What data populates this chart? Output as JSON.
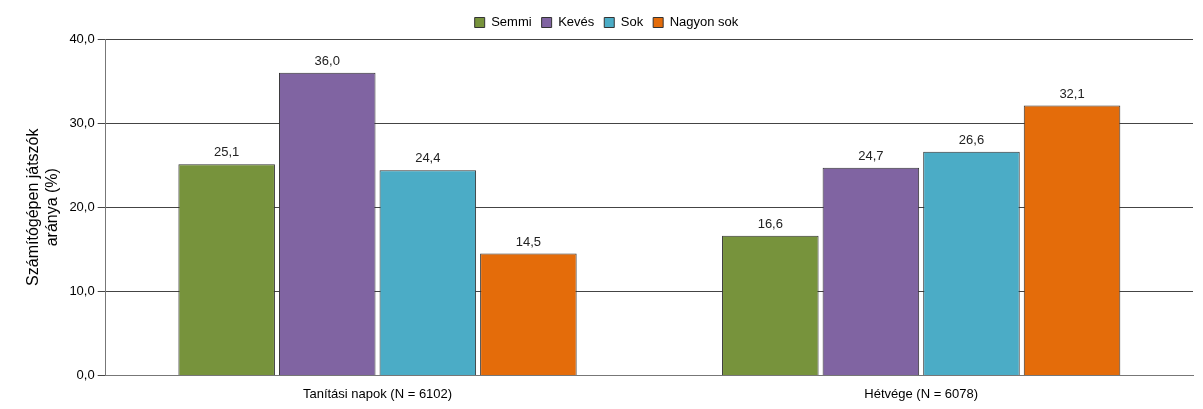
{
  "chart_data": {
    "type": "bar",
    "ylabel": "Számítógépen játszók aránya (%)",
    "categories": [
      "Tanítási napok (N = 6102)",
      "Hétvége (N = 6078)"
    ],
    "series": [
      {
        "name": "Semmi",
        "color": "#77933c",
        "values": [
          25.1,
          16.6
        ],
        "value_labels": [
          "25,1",
          "16,6"
        ]
      },
      {
        "name": "Kevés",
        "color": "#8064a2",
        "values": [
          36.0,
          24.7
        ],
        "value_labels": [
          "36,0",
          "24,7"
        ]
      },
      {
        "name": "Sok",
        "color": "#4bacc6",
        "values": [
          24.4,
          26.6
        ],
        "value_labels": [
          "24,4",
          "26,6"
        ]
      },
      {
        "name": "Nagyon sok",
        "color": "#e46c0a",
        "values": [
          14.5,
          32.1
        ],
        "value_labels": [
          "14,5",
          "32,1"
        ]
      }
    ],
    "ylim": [
      0,
      40
    ],
    "yticks": [
      {
        "value": 0,
        "label": "0,0"
      },
      {
        "value": 10,
        "label": "10,0"
      },
      {
        "value": 20,
        "label": "20,0"
      },
      {
        "value": 30,
        "label": "30,0"
      },
      {
        "value": 40,
        "label": "40,0"
      }
    ],
    "grid": "y",
    "legend": "top"
  }
}
